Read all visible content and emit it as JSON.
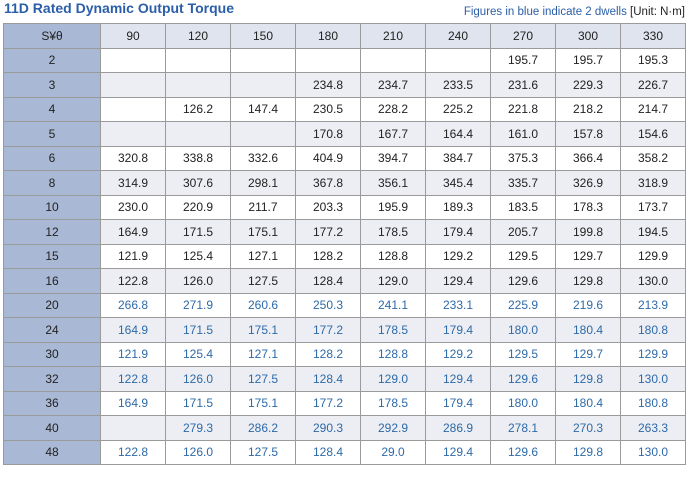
{
  "header": {
    "title": "11D Rated Dynamic Output Torque",
    "note": "Figures in blue indicate 2 dwells",
    "unit": "[Unit: N·m]"
  },
  "table": {
    "corner": "S¥θ",
    "columns": [
      "90",
      "120",
      "150",
      "180",
      "210",
      "240",
      "270",
      "300",
      "330"
    ],
    "rows": [
      {
        "s": "2",
        "blue": false,
        "cells": [
          null,
          null,
          null,
          null,
          null,
          null,
          "195.7",
          "195.7",
          "195.3"
        ]
      },
      {
        "s": "3",
        "blue": false,
        "cells": [
          null,
          null,
          null,
          "234.8",
          "234.7",
          "233.5",
          "231.6",
          "229.3",
          "226.7"
        ]
      },
      {
        "s": "4",
        "blue": false,
        "cells": [
          null,
          "126.2",
          "147.4",
          "230.5",
          "228.2",
          "225.2",
          "221.8",
          "218.2",
          "214.7"
        ]
      },
      {
        "s": "5",
        "blue": false,
        "cells": [
          null,
          null,
          null,
          "170.8",
          "167.7",
          "164.4",
          "161.0",
          "157.8",
          "154.6"
        ]
      },
      {
        "s": "6",
        "blue": false,
        "cells": [
          "320.8",
          "338.8",
          "332.6",
          "404.9",
          "394.7",
          "384.7",
          "375.3",
          "366.4",
          "358.2"
        ]
      },
      {
        "s": "8",
        "blue": false,
        "cells": [
          "314.9",
          "307.6",
          "298.1",
          "367.8",
          "356.1",
          "345.4",
          "335.7",
          "326.9",
          "318.9"
        ]
      },
      {
        "s": "10",
        "blue": false,
        "cells": [
          "230.0",
          "220.9",
          "211.7",
          "203.3",
          "195.9",
          "189.3",
          "183.5",
          "178.3",
          "173.7"
        ]
      },
      {
        "s": "12",
        "blue": false,
        "cells": [
          "164.9",
          "171.5",
          "175.1",
          "177.2",
          "178.5",
          "179.4",
          "205.7",
          "199.8",
          "194.5"
        ]
      },
      {
        "s": "15",
        "blue": false,
        "cells": [
          "121.9",
          "125.4",
          "127.1",
          "128.2",
          "128.8",
          "129.2",
          "129.5",
          "129.7",
          "129.9"
        ]
      },
      {
        "s": "16",
        "blue": false,
        "cells": [
          "122.8",
          "126.0",
          "127.5",
          "128.4",
          "129.0",
          "129.4",
          "129.6",
          "129.8",
          "130.0"
        ]
      },
      {
        "s": "20",
        "blue": true,
        "cells": [
          "266.8",
          "271.9",
          "260.6",
          "250.3",
          "241.1",
          "233.1",
          "225.9",
          "219.6",
          "213.9"
        ]
      },
      {
        "s": "24",
        "blue": true,
        "cells": [
          "164.9",
          "171.5",
          "175.1",
          "177.2",
          "178.5",
          "179.4",
          "180.0",
          "180.4",
          "180.8"
        ]
      },
      {
        "s": "30",
        "blue": true,
        "cells": [
          "121.9",
          "125.4",
          "127.1",
          "128.2",
          "128.8",
          "129.2",
          "129.5",
          "129.7",
          "129.9"
        ]
      },
      {
        "s": "32",
        "blue": true,
        "cells": [
          "122.8",
          "126.0",
          "127.5",
          "128.4",
          "129.0",
          "129.4",
          "129.6",
          "129.8",
          "130.0"
        ]
      },
      {
        "s": "36",
        "blue": true,
        "cells": [
          "164.9",
          "171.5",
          "175.1",
          "177.2",
          "178.5",
          "179.4",
          "180.0",
          "180.4",
          "180.8"
        ]
      },
      {
        "s": "40",
        "blue": true,
        "cells": [
          null,
          "279.3",
          "286.2",
          "290.3",
          "292.9",
          "286.9",
          "278.1",
          "270.3",
          "263.3"
        ]
      },
      {
        "s": "48",
        "blue": true,
        "cells": [
          "122.8",
          "126.0",
          "127.5",
          "128.4",
          "29.0",
          "129.4",
          "129.6",
          "129.8",
          "130.0"
        ]
      }
    ]
  }
}
